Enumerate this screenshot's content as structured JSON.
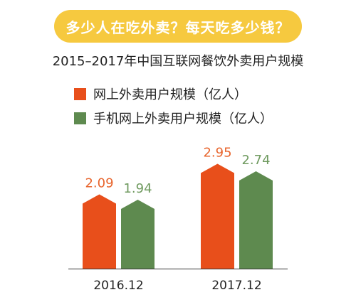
{
  "banner": {
    "text": "多少人在吃外卖？每天吃多少钱？"
  },
  "chart_data": {
    "type": "bar",
    "title": "2015–2017年中国互联网餐饮外卖用户规模",
    "categories": [
      "2016.12",
      "2017.12"
    ],
    "series": [
      {
        "name": "网上外卖用户规模（亿人）",
        "values": [
          2.09,
          2.95
        ],
        "color": "#e84f1b"
      },
      {
        "name": "手机网上外卖用户规模（亿人）",
        "values": [
          1.94,
          2.74
        ],
        "color": "#5e8a4f"
      }
    ],
    "ylim": [
      0,
      3.3
    ],
    "grid": false,
    "legend": "top-left",
    "value_label_colors": [
      "#e8652d",
      "#6f9a5f"
    ]
  }
}
